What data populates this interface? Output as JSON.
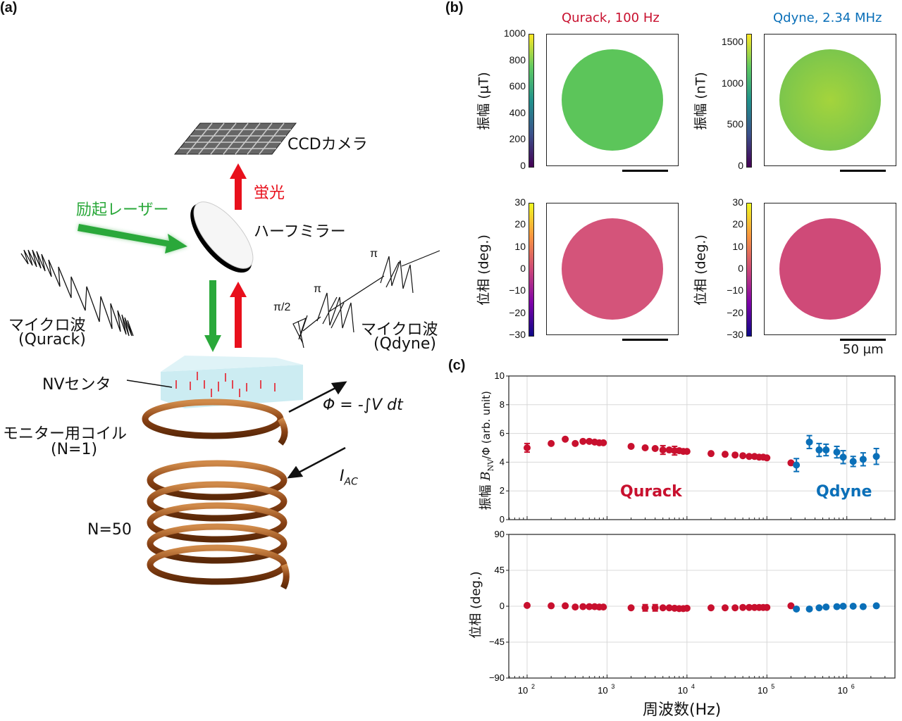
{
  "panel_a": {
    "letter": "(a)",
    "ccd_label": "CCDカメラ",
    "fluorescence_label": "蛍光",
    "laser_label": "励起レーザー",
    "mirror_label": "ハーフミラー",
    "pulse_labels": [
      "π/2",
      "π",
      "π"
    ],
    "mw_qurack_label": "マイクロ波",
    "mw_qurack_sub": "(Qurack)",
    "mw_qdyne_label": "マイクロ波",
    "mw_qdyne_sub": "(Qdyne)",
    "nv_label": "NVセンタ",
    "flux_label": "Φ = -∫V dt",
    "monitor_coil_label": "モニター用コイル",
    "monitor_coil_n": "(N=1)",
    "current_label": "I",
    "current_sub": "AC",
    "main_coil_label": "N=50",
    "colors": {
      "laser": "#2aa83a",
      "fluorescence": "#e8101c",
      "coil": "#a0521e"
    }
  },
  "panel_b": {
    "letter": "(b)",
    "col_titles": [
      {
        "text": "Qurack, 100 Hz",
        "color": "#c8102e"
      },
      {
        "text": "Qdyne, 2.34 MHz",
        "color": "#0a6fb8"
      }
    ],
    "maps": [
      {
        "ylabel": "振幅 (μT)",
        "ticks": [
          "1000",
          "800",
          "600",
          "400",
          "200",
          "0"
        ],
        "colormap": "viridis",
        "fill": "#5cc55a"
      },
      {
        "ylabel": "振幅 (nT)",
        "ticks": [
          "1500",
          "1000",
          "500",
          "0"
        ],
        "colormap": "viridis",
        "fill": "#8fcf45"
      },
      {
        "ylabel": "位相 (deg.)",
        "ticks": [
          "30",
          "20",
          "10",
          "0",
          "−10",
          "−20",
          "−30"
        ],
        "colormap": "plasma",
        "fill": "#d4547a"
      },
      {
        "ylabel": "位相 (deg.)",
        "ticks": [
          "30",
          "20",
          "10",
          "0",
          "−10",
          "−20",
          "−30"
        ],
        "colormap": "plasma",
        "fill": "#cf4a78"
      }
    ],
    "scale_label": "50 μm"
  },
  "chart_data": {
    "letter": "(c)",
    "type": "scatter",
    "x_scale": "log",
    "xlabel": "周波数(Hz)",
    "xticks": [
      "10^2",
      "10^3",
      "10^4",
      "10^5",
      "10^6"
    ],
    "xlim": [
      59,
      4000000
    ],
    "grid": true,
    "series_labels": [
      {
        "text": "Qurack",
        "color": "#c8102e"
      },
      {
        "text": "Qdyne",
        "color": "#0a6fb8"
      }
    ],
    "subplots": [
      {
        "ylabel_prefix": "振幅 ",
        "ylabel_math": "B",
        "ylabel_sub": "NV",
        "ylabel_suffix": "/Φ (arb. unit)",
        "ylim": [
          0,
          10
        ],
        "yticks": [
          "0",
          "2",
          "4",
          "6",
          "8",
          "10"
        ],
        "series": [
          {
            "name": "Qurack",
            "color": "#c8102e",
            "x": [
              100,
              200,
              300,
              400,
              500,
              600,
              700,
              800,
              900,
              2000,
              3000,
              4000,
              5000,
              6000,
              7000,
              8000,
              9000,
              10000,
              20000,
              30000,
              40000,
              50000,
              60000,
              70000,
              80000,
              90000,
              100000,
              200000
            ],
            "y": [
              5.0,
              5.3,
              5.6,
              5.3,
              5.45,
              5.45,
              5.4,
              5.35,
              5.35,
              5.1,
              5.0,
              4.95,
              4.85,
              4.85,
              4.8,
              4.8,
              4.75,
              4.75,
              4.6,
              4.55,
              4.5,
              4.45,
              4.4,
              4.4,
              4.35,
              4.35,
              4.3,
              3.95
            ],
            "err": [
              0.3,
              0,
              0,
              0,
              0,
              0,
              0,
              0,
              0,
              0,
              0,
              0,
              0.3,
              0,
              0.3,
              0,
              0,
              0,
              0,
              0,
              0,
              0,
              0,
              0,
              0,
              0,
              0,
              0
            ]
          },
          {
            "name": "Qdyne",
            "color": "#0a6fb8",
            "x": [
              234000,
              340000,
              450000,
              550000,
              750000,
              900000,
              1200000,
              1600000,
              2340000
            ],
            "y": [
              3.8,
              5.4,
              4.85,
              4.85,
              4.7,
              4.35,
              4.05,
              4.2,
              4.4
            ],
            "err": [
              0.45,
              0.45,
              0.45,
              0.4,
              0.4,
              0.45,
              0.35,
              0.45,
              0.55
            ]
          }
        ]
      },
      {
        "ylabel_prefix": "位相 (deg.)",
        "ylim": [
          -90,
          90
        ],
        "yticks": [
          "90",
          "45",
          "0",
          "−45",
          "−90"
        ],
        "series": [
          {
            "name": "Qurack",
            "color": "#c8102e",
            "x": [
              100,
              200,
              300,
              400,
              500,
              600,
              700,
              800,
              900,
              2000,
              3000,
              4000,
              5000,
              6000,
              7000,
              8000,
              9000,
              10000,
              20000,
              30000,
              40000,
              50000,
              60000,
              70000,
              80000,
              90000,
              100000,
              200000
            ],
            "y": [
              1,
              0.5,
              0.5,
              -1,
              -0.5,
              -0.5,
              -0.5,
              -1,
              -1,
              -2,
              -2,
              -2,
              -2,
              -2,
              -2.5,
              -3,
              -3,
              -2.5,
              -2,
              -2,
              -2,
              -1.5,
              -1.5,
              -1.5,
              -1.5,
              -1.5,
              -1.5,
              0.5
            ],
            "err": [
              0,
              0,
              0,
              0,
              0,
              0,
              0,
              0,
              0,
              0,
              4,
              4,
              0,
              0,
              0,
              0,
              0,
              0,
              0,
              0,
              0,
              0,
              0,
              0,
              0,
              0,
              0,
              0
            ]
          },
          {
            "name": "Qdyne",
            "color": "#0a6fb8",
            "x": [
              234000,
              340000,
              450000,
              550000,
              750000,
              900000,
              1200000,
              1600000,
              2340000
            ],
            "y": [
              -3.5,
              -3.5,
              -2,
              -1,
              -0.5,
              0,
              0,
              -0.5,
              0.5
            ],
            "err": [
              0,
              0,
              0,
              0,
              0,
              0,
              0,
              0,
              0
            ]
          }
        ]
      }
    ]
  }
}
